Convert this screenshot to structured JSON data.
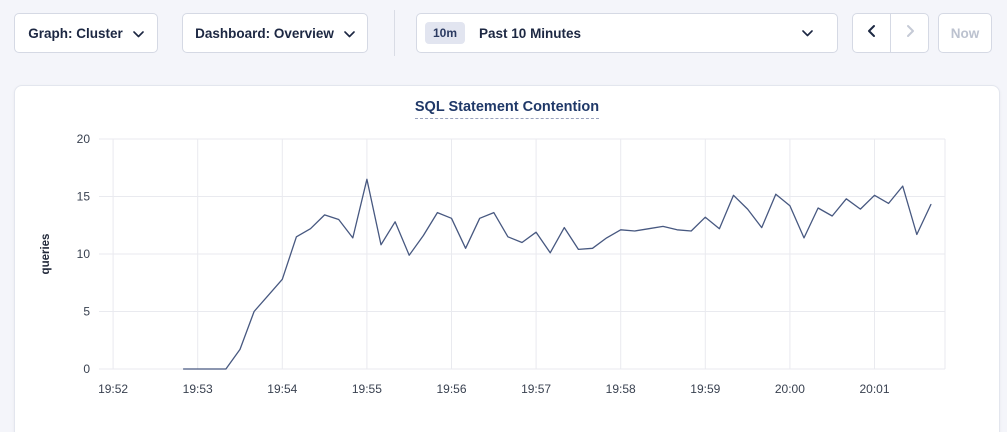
{
  "toolbar": {
    "graph_dropdown": {
      "label": "Graph: Cluster"
    },
    "dashboard_dropdown": {
      "label": "Dashboard: Overview"
    },
    "time_range": {
      "badge": "10m",
      "label": "Past 10 Minutes"
    },
    "prev_button": {
      "enabled": true
    },
    "next_button": {
      "enabled": false
    },
    "now_button": {
      "label": "Now",
      "enabled": false
    }
  },
  "chart": {
    "title": "SQL Statement Contention"
  },
  "chart_data": {
    "type": "line",
    "title": "SQL Statement Contention",
    "xlabel": "",
    "ylabel": "queries",
    "ylim": [
      0,
      20
    ],
    "yticks": [
      0,
      5,
      10,
      15,
      20
    ],
    "x_ticks": [
      "19:52",
      "19:53",
      "19:54",
      "19:55",
      "19:56",
      "19:57",
      "19:58",
      "19:59",
      "20:00",
      "20:01"
    ],
    "x_domain": [
      "19:51:50",
      "20:01:50"
    ],
    "grid": true,
    "grid_color": "#e9eaef",
    "legend": "none",
    "series": [
      {
        "name": "queries",
        "color": "#475880",
        "points": [
          [
            "19:52:50",
            0
          ],
          [
            "19:53:00",
            0
          ],
          [
            "19:53:10",
            0
          ],
          [
            "19:53:20",
            0
          ],
          [
            "19:53:30",
            1.7
          ],
          [
            "19:53:40",
            5.0
          ],
          [
            "19:53:50",
            6.4
          ],
          [
            "19:54:00",
            7.8
          ],
          [
            "19:54:10",
            11.5
          ],
          [
            "19:54:20",
            12.2
          ],
          [
            "19:54:30",
            13.4
          ],
          [
            "19:54:40",
            13.0
          ],
          [
            "19:54:50",
            11.4
          ],
          [
            "19:55:00",
            16.5
          ],
          [
            "19:55:10",
            10.8
          ],
          [
            "19:55:20",
            12.8
          ],
          [
            "19:55:30",
            9.9
          ],
          [
            "19:55:40",
            11.6
          ],
          [
            "19:55:50",
            13.6
          ],
          [
            "19:56:00",
            13.1
          ],
          [
            "19:56:10",
            10.5
          ],
          [
            "19:56:20",
            13.1
          ],
          [
            "19:56:30",
            13.6
          ],
          [
            "19:56:40",
            11.5
          ],
          [
            "19:56:50",
            11.0
          ],
          [
            "19:57:00",
            11.9
          ],
          [
            "19:57:10",
            10.1
          ],
          [
            "19:57:20",
            12.3
          ],
          [
            "19:57:30",
            10.4
          ],
          [
            "19:57:40",
            10.5
          ],
          [
            "19:57:50",
            11.4
          ],
          [
            "19:58:00",
            12.1
          ],
          [
            "19:58:10",
            12.0
          ],
          [
            "19:58:20",
            12.2
          ],
          [
            "19:58:30",
            12.4
          ],
          [
            "19:58:40",
            12.1
          ],
          [
            "19:58:50",
            12.0
          ],
          [
            "19:59:00",
            13.2
          ],
          [
            "19:59:10",
            12.2
          ],
          [
            "19:59:20",
            15.1
          ],
          [
            "19:59:30",
            13.9
          ],
          [
            "19:59:40",
            12.3
          ],
          [
            "19:59:50",
            15.2
          ],
          [
            "20:00:00",
            14.2
          ],
          [
            "20:00:10",
            11.4
          ],
          [
            "20:00:20",
            14.0
          ],
          [
            "20:00:30",
            13.3
          ],
          [
            "20:00:40",
            14.8
          ],
          [
            "20:00:50",
            13.9
          ],
          [
            "20:01:00",
            15.1
          ],
          [
            "20:01:10",
            14.4
          ],
          [
            "20:01:20",
            15.9
          ],
          [
            "20:01:30",
            11.7
          ],
          [
            "20:01:40",
            14.3
          ]
        ]
      }
    ]
  },
  "colors": {
    "page_background": "#f4f5fa",
    "card_background": "#ffffff",
    "line": "#475880",
    "title": "#1f3868",
    "border": "#d5d9e4",
    "disabled_text": "#bcc2cf"
  }
}
